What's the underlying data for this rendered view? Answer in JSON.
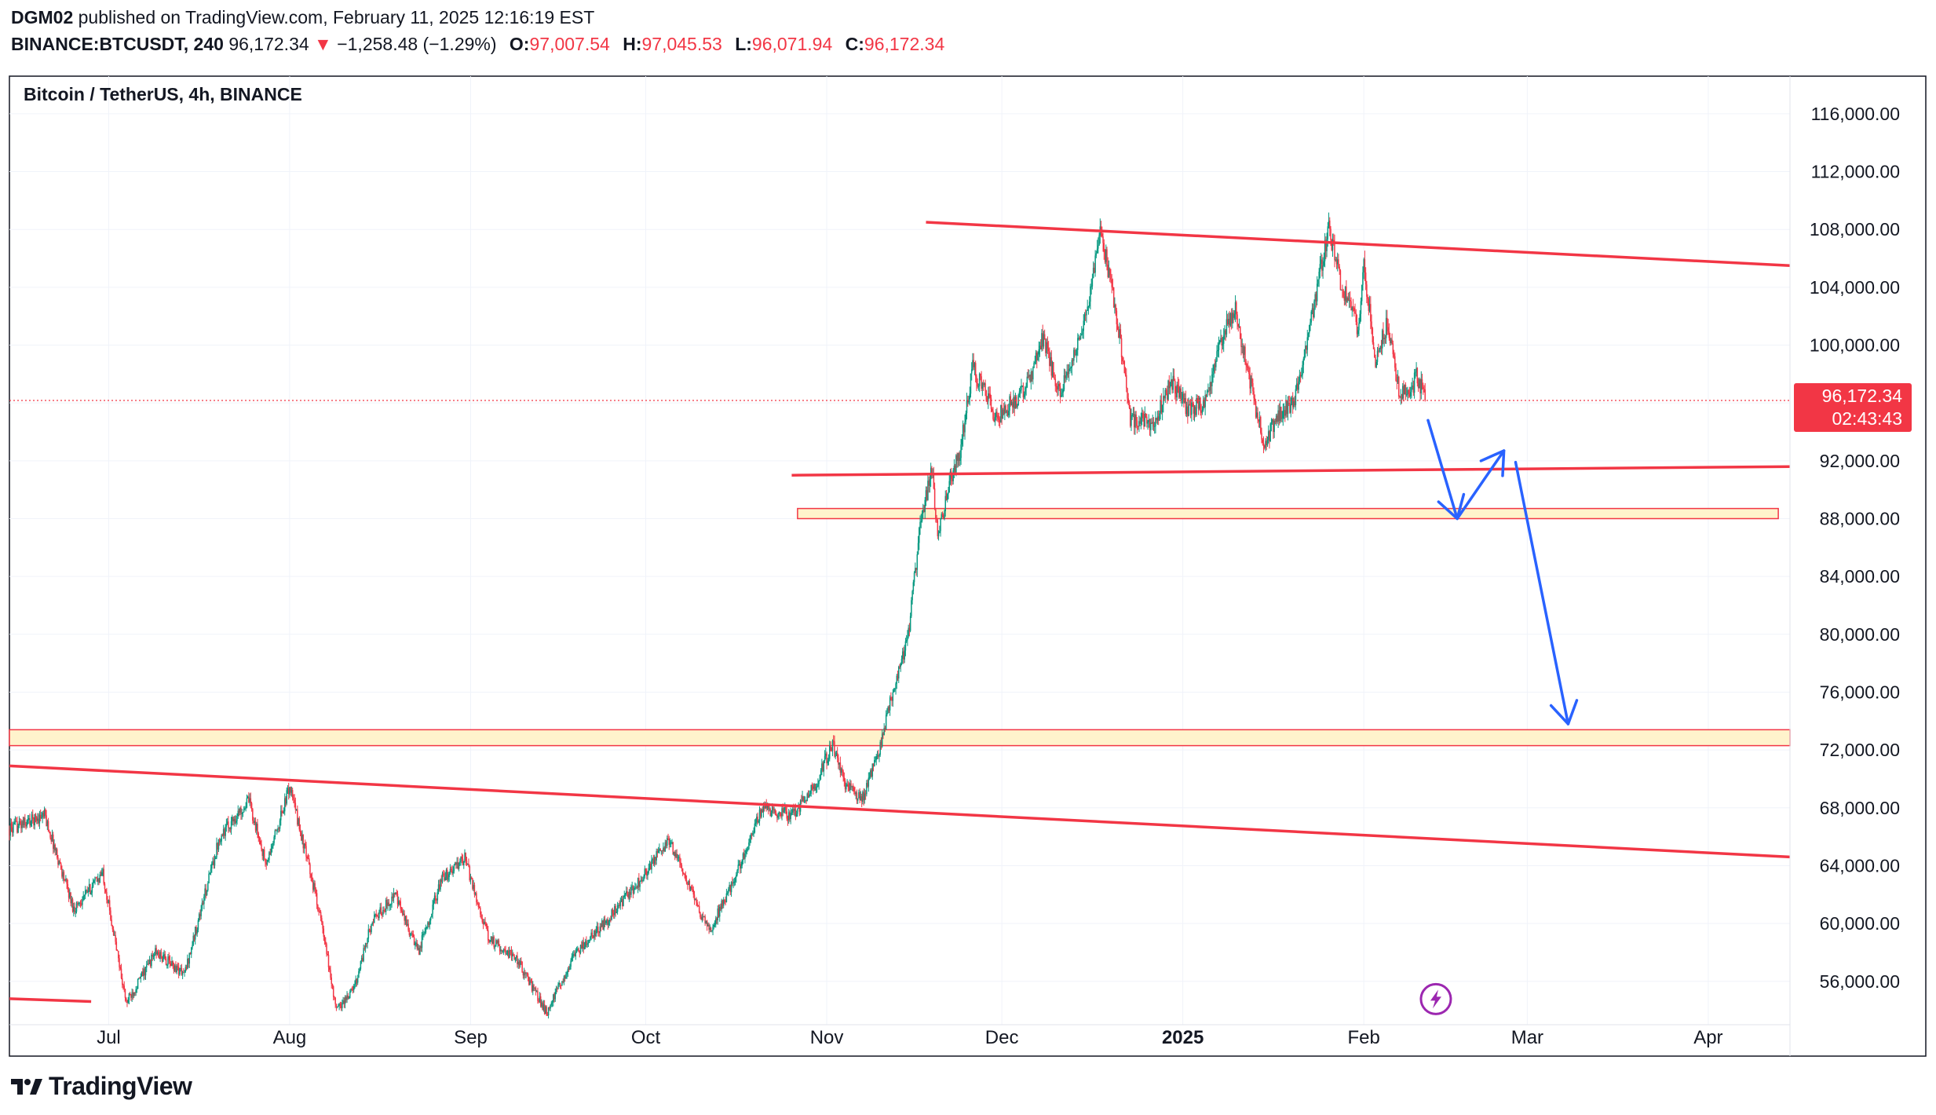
{
  "header": {
    "author": "DGM02",
    "published_text": "published on TradingView.com, February 11, 2025 12:16:19 EST",
    "symbol": "BINANCE:BTCUSDT, 240",
    "last_price": "96,172.34",
    "down_arrow": "▼",
    "change": "−1,258.48 (−1.29%)",
    "open_label": "O:",
    "open": "97,007.54",
    "high_label": "H:",
    "high": "97,045.53",
    "low_label": "L:",
    "low": "96,071.94",
    "close_label": "C:",
    "close": "96,172.34"
  },
  "footer": {
    "brand": "TradingView",
    "logo_icon": "tradingview-logo-icon"
  },
  "colors": {
    "up": "#089981",
    "down": "#f23645",
    "trendline": "#f23645",
    "zone_fill": "#fff3cc",
    "zone_border": "#f23645",
    "arrow": "#2962ff",
    "price_label_bg": "#f23645",
    "grid": "#f0f3fa",
    "text": "#131722"
  },
  "chart_data": {
    "type": "candlestick",
    "title": "Bitcoin / TetherUS, 4h, BINANCE",
    "ylim": [
      53000,
      118600
    ],
    "yticks": [
      56000,
      60000,
      64000,
      68000,
      72000,
      76000,
      80000,
      84000,
      88000,
      92000,
      96000,
      100000,
      104000,
      108000,
      112000,
      116000
    ],
    "ytick_labels": [
      "56,000.00",
      "60,000.00",
      "64,000.00",
      "68,000.00",
      "72,000.00",
      "76,000.00",
      "80,000.00",
      "84,000.00",
      "88,000.00",
      "92,000.00",
      "",
      "100,000.00",
      "104,000.00",
      "108,000.00",
      "112,000.00",
      "116,000.00"
    ],
    "x_range_days": [
      -3,
      302
    ],
    "xticks": [
      {
        "day": 14,
        "label": "Jul",
        "bold": false
      },
      {
        "day": 45,
        "label": "Aug",
        "bold": false
      },
      {
        "day": 76,
        "label": "Sep",
        "bold": false
      },
      {
        "day": 106,
        "label": "Oct",
        "bold": false
      },
      {
        "day": 137,
        "label": "Nov",
        "bold": false
      },
      {
        "day": 167,
        "label": "Dec",
        "bold": false
      },
      {
        "day": 198,
        "label": "2025",
        "bold": true
      },
      {
        "day": 229,
        "label": "Feb",
        "bold": false
      },
      {
        "day": 257,
        "label": "Mar",
        "bold": false
      },
      {
        "day": 288,
        "label": "Apr",
        "bold": false
      }
    ],
    "last_price": 96172.34,
    "price_label": "96,172.34",
    "countdown": "02:43:43",
    "price_path": [
      [
        -3,
        66500
      ],
      [
        3,
        67500
      ],
      [
        8,
        61000
      ],
      [
        13,
        63500
      ],
      [
        17,
        54500
      ],
      [
        22,
        58000
      ],
      [
        27,
        56500
      ],
      [
        33,
        66000
      ],
      [
        38,
        68500
      ],
      [
        41,
        64000
      ],
      [
        45,
        69500
      ],
      [
        50,
        61000
      ],
      [
        53,
        54000
      ],
      [
        56,
        55500
      ],
      [
        59,
        60000
      ],
      [
        63,
        62000
      ],
      [
        67,
        58000
      ],
      [
        71,
        63000
      ],
      [
        75,
        64500
      ],
      [
        79,
        59000
      ],
      [
        84,
        57500
      ],
      [
        89,
        53800
      ],
      [
        94,
        58000
      ],
      [
        100,
        60500
      ],
      [
        105,
        63000
      ],
      [
        110,
        65800
      ],
      [
        115,
        61000
      ],
      [
        117,
        59500
      ],
      [
        121,
        63000
      ],
      [
        126,
        68000
      ],
      [
        131,
        67500
      ],
      [
        135,
        69500
      ],
      [
        138,
        72500
      ],
      [
        140,
        69800
      ],
      [
        143,
        68500
      ],
      [
        146,
        72000
      ],
      [
        148,
        75500
      ],
      [
        151,
        80000
      ],
      [
        153,
        87500
      ],
      [
        155,
        91500
      ],
      [
        156,
        86500
      ],
      [
        158,
        90500
      ],
      [
        160,
        93000
      ],
      [
        162,
        98500
      ],
      [
        166,
        95000
      ],
      [
        170,
        96500
      ],
      [
        172,
        98000
      ],
      [
        174,
        100500
      ],
      [
        177,
        96500
      ],
      [
        181,
        101500
      ],
      [
        184,
        108000
      ],
      [
        187,
        101000
      ],
      [
        189,
        95000
      ],
      [
        193,
        94500
      ],
      [
        196,
        97500
      ],
      [
        199,
        95500
      ],
      [
        202,
        96000
      ],
      [
        205,
        101000
      ],
      [
        207,
        102500
      ],
      [
        210,
        96500
      ],
      [
        212,
        93000
      ],
      [
        214,
        95000
      ],
      [
        217,
        96000
      ],
      [
        219,
        99500
      ],
      [
        221,
        104000
      ],
      [
        223,
        108000
      ],
      [
        225,
        104500
      ],
      [
        228,
        101000
      ],
      [
        229,
        105500
      ],
      [
        231,
        99000
      ],
      [
        233,
        101500
      ],
      [
        235,
        97000
      ],
      [
        237,
        96500
      ],
      [
        238,
        98000
      ],
      [
        239.6,
        96172
      ]
    ],
    "trendlines": [
      {
        "name": "upper-resistance",
        "p1": [
          154,
          108500
        ],
        "p2": [
          302,
          105500
        ]
      },
      {
        "name": "middle-support",
        "p1": [
          131,
          91000
        ],
        "p2": [
          302,
          91600
        ]
      },
      {
        "name": "lower-channel",
        "p1": [
          -3,
          70900
        ],
        "p2": [
          302,
          64600
        ]
      },
      {
        "name": "lower-left-stub",
        "p1": [
          -3,
          54800
        ],
        "p2": [
          11,
          54600
        ]
      }
    ],
    "zones": [
      {
        "name": "upper-support-zone",
        "day_from": 132,
        "day_to": 300,
        "low": 88000,
        "high": 88700
      },
      {
        "name": "lower-support-zone",
        "day_from": -3,
        "day_to": 302,
        "low": 72300,
        "high": 73400
      }
    ],
    "projection_arrows": [
      {
        "name": "projected-drop-1",
        "from": [
          240,
          94800
        ],
        "to": [
          245,
          88000
        ]
      },
      {
        "name": "projected-bounce",
        "from": [
          245,
          88000
        ],
        "to": [
          253,
          92700
        ]
      },
      {
        "name": "projected-drop-2",
        "from": [
          255,
          91900
        ],
        "to": [
          264,
          73800
        ]
      }
    ],
    "icon": {
      "name": "lightning-icon",
      "day": 240,
      "value": 54500
    }
  }
}
